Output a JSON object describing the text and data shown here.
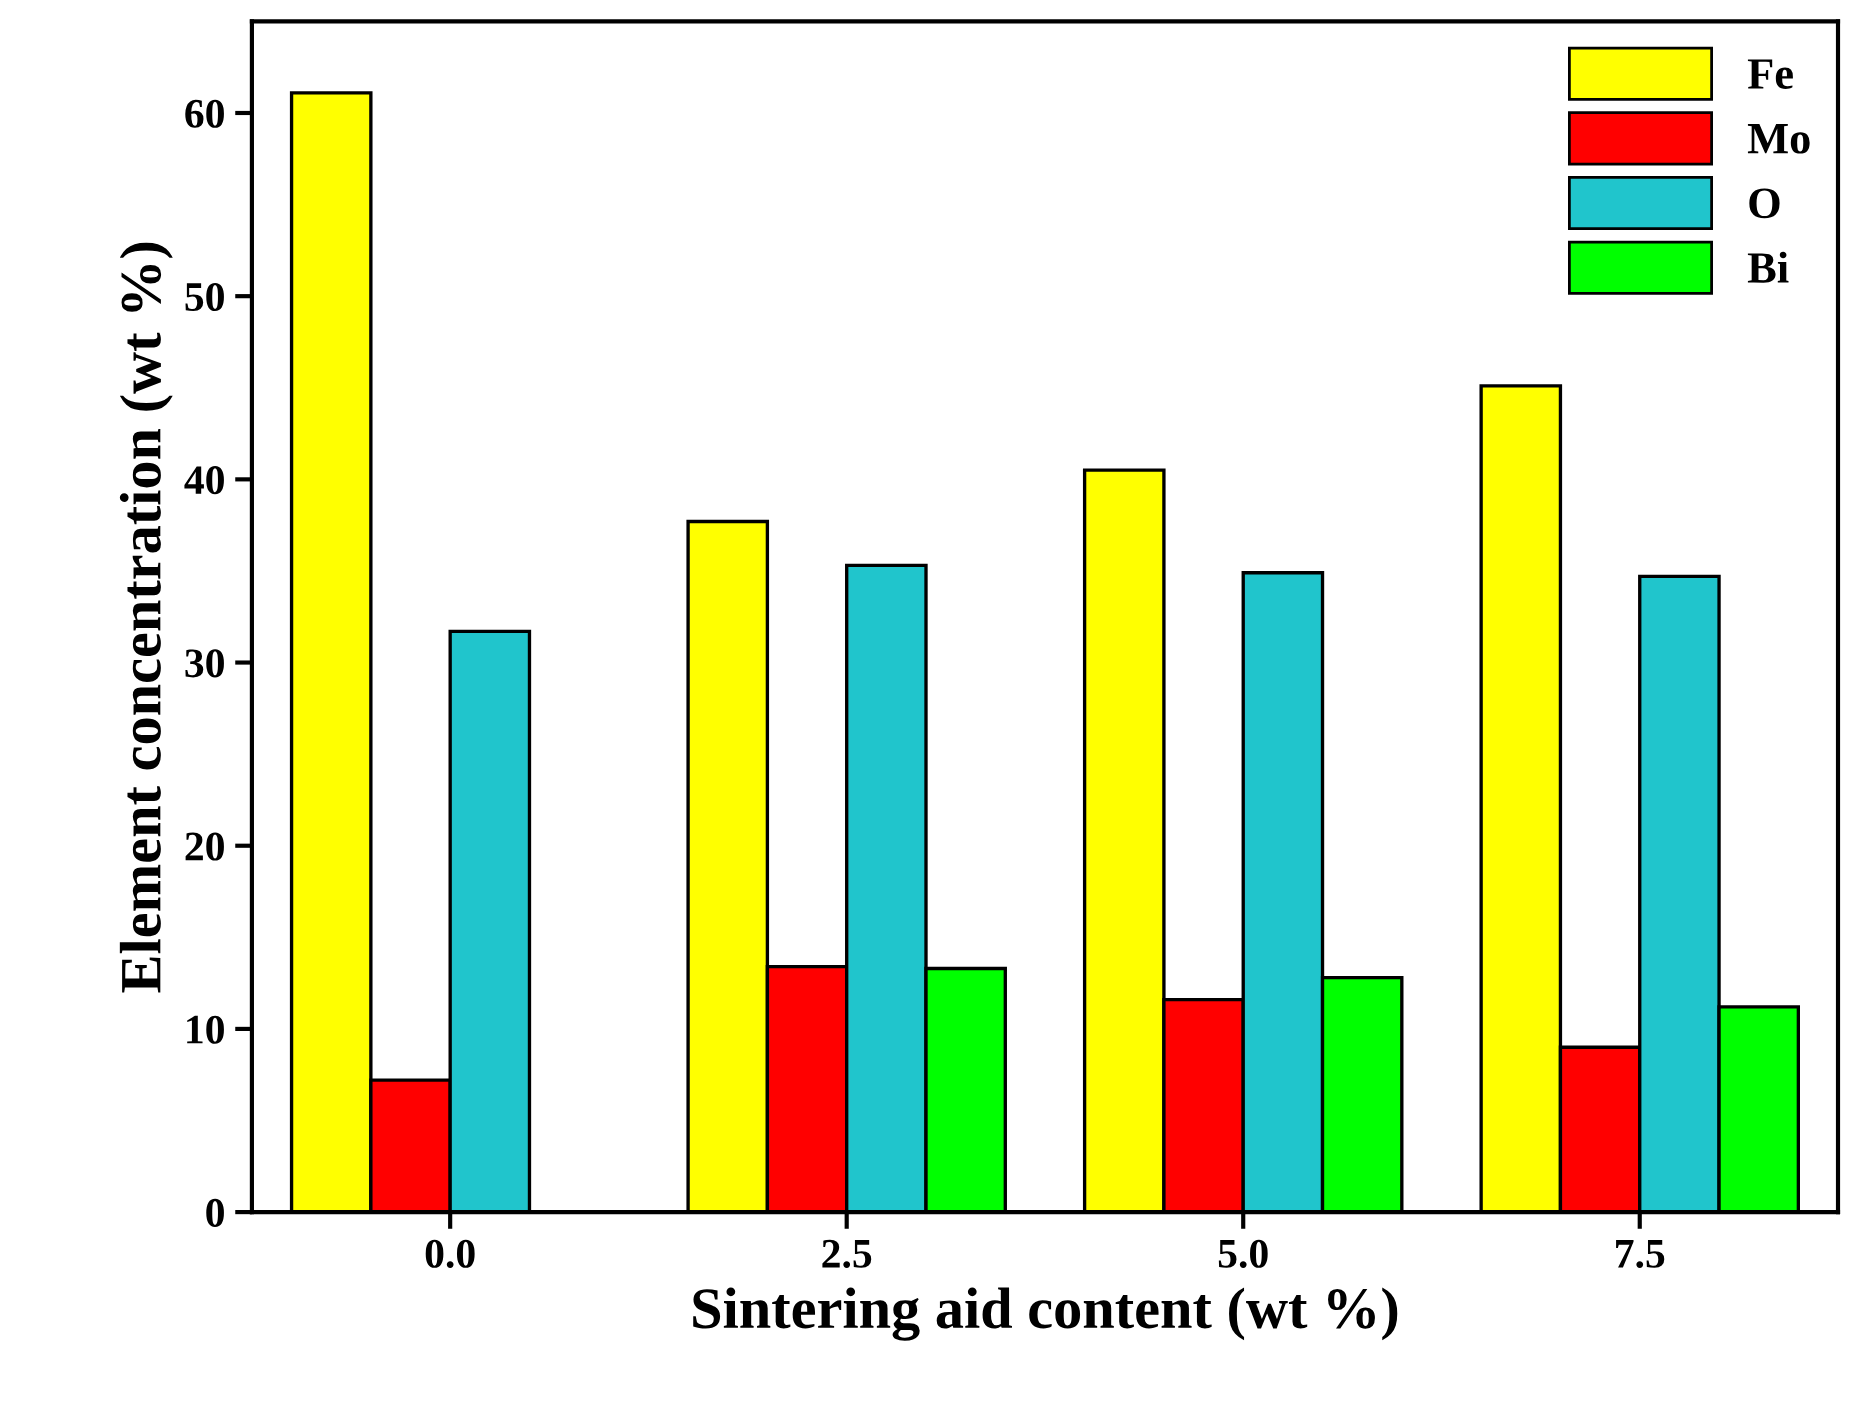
{
  "chart_data": {
    "type": "bar",
    "xlabel": "Sintering aid content (wt %)",
    "ylabel": "Element concentration (wt %)",
    "categories": [
      "0.0",
      "2.5",
      "5.0",
      "7.5"
    ],
    "series": [
      {
        "name": "Fe",
        "color": "#ffff00",
        "values": [
          61.1,
          37.7,
          40.5,
          45.1
        ]
      },
      {
        "name": "Mo",
        "color": "#ff0000",
        "values": [
          7.2,
          13.4,
          11.6,
          9.0
        ]
      },
      {
        "name": "O",
        "color": "#20c5cc",
        "values": [
          31.7,
          35.3,
          34.9,
          34.7
        ]
      },
      {
        "name": "Bi",
        "color": "#00ff00",
        "values": [
          null,
          13.3,
          12.8,
          11.2
        ]
      }
    ],
    "ylim": [
      0,
      65
    ],
    "yticks": [
      0,
      10,
      20,
      30,
      40,
      50,
      60
    ],
    "legend": "top right",
    "grid": false
  }
}
